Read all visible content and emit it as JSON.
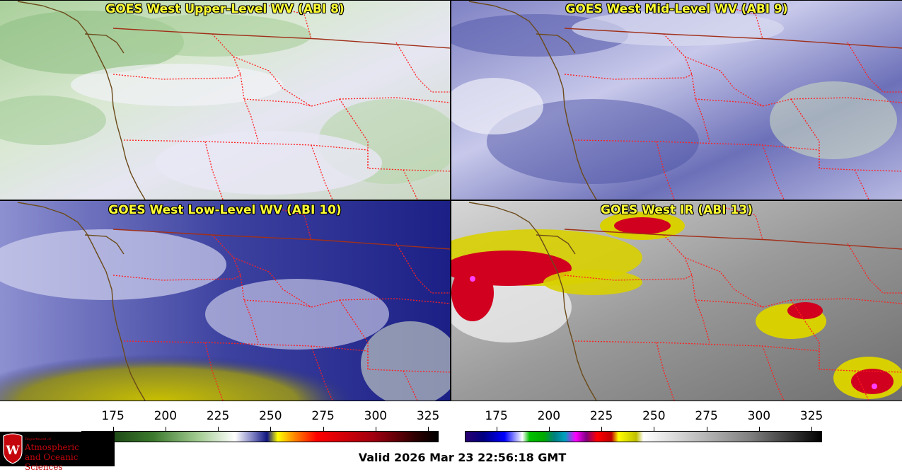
{
  "panels": [
    {
      "title": "GOES West Upper-Level WV (ABI 8)",
      "palette": "wv-green"
    },
    {
      "title": "GOES West Mid-Level WV (ABI 9)",
      "palette": "wv-blue"
    },
    {
      "title": "GOES West Low-Level WV (ABI 10)",
      "palette": "wv-blue-yellow"
    },
    {
      "title": "GOES West IR (ABI 13)",
      "palette": "ir-gray-red"
    }
  ],
  "colorbars": {
    "wv": {
      "ticks": [
        "175",
        "200",
        "225",
        "250",
        "275",
        "300",
        "325"
      ],
      "range": [
        160,
        330
      ]
    },
    "ir": {
      "ticks": [
        "175",
        "200",
        "225",
        "250",
        "275",
        "300",
        "325"
      ],
      "range": [
        160,
        330
      ]
    }
  },
  "logo": {
    "small": "Department of",
    "line1": "Atmospheric",
    "line2": "and Oceanic Sciences",
    "letter": "W"
  },
  "valid_time": "Valid 2026 Mar 23 22:56:18 GMT",
  "colors": {
    "title_text": "#ffff33",
    "coastline": "#6b4a1a",
    "state_border": "#ff2020",
    "country_border": "#a0301a"
  }
}
